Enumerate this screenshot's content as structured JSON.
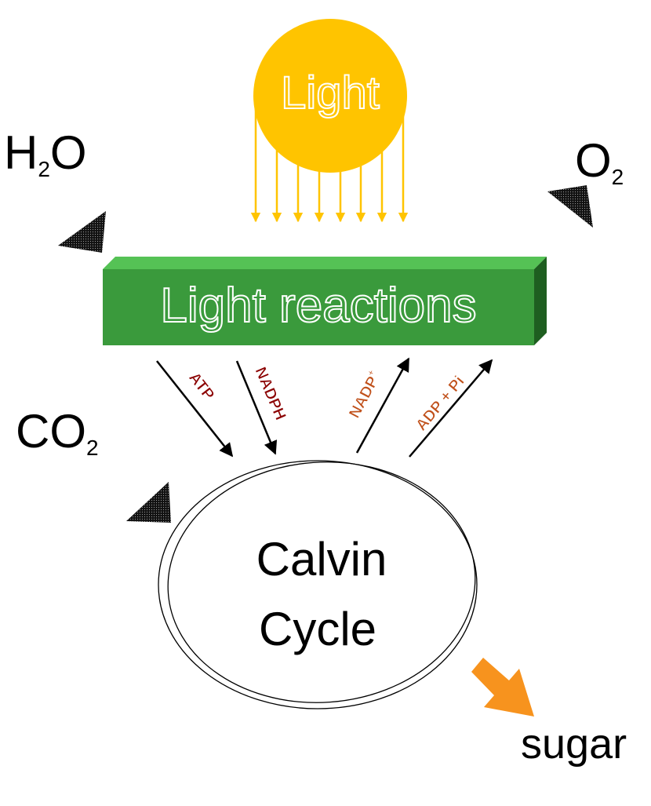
{
  "sun": {
    "label": "Light",
    "color": "#FFC400"
  },
  "light_reactions": {
    "label": "Light reactions",
    "front_color": "#3A9A3C",
    "top_color": "#55C255",
    "side_color": "#1E5E20"
  },
  "calvin_cycle": {
    "line1": "Calvin",
    "line2": "Cycle"
  },
  "inputs_outputs": {
    "water": {
      "main": "H",
      "sub": "2",
      "tail": "O"
    },
    "oxygen": {
      "main": "O",
      "sub": "2"
    },
    "carbon_dioxide": {
      "main": "CO",
      "sub": "2"
    },
    "sugar": "sugar"
  },
  "arrows": {
    "atp": "ATP",
    "nadph": "NADPH",
    "nadp": {
      "main": "NADP",
      "sup": "+"
    },
    "adp": "ADP + Pi"
  },
  "colors": {
    "down_label": "#8B0000",
    "up_label": "#C0501A",
    "sugar_arrow": "#F7931E",
    "arrowhead_fill": "#222222"
  }
}
